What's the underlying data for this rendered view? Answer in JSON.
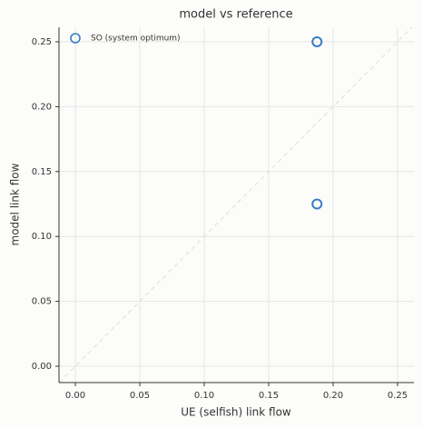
{
  "chart_data": {
    "type": "scatter",
    "title": "model vs reference",
    "x_label": "UE (selfish) link flow",
    "y_label": "model link flow",
    "series": [
      {
        "name": "SO (system optimum)",
        "color": "#3a7bc8",
        "x": [
          0.1875,
          0.1875
        ],
        "values": [
          0.25,
          0.125
        ]
      }
    ],
    "xlim": [
      -0.0127,
      0.2627
    ],
    "ylim": [
      -0.0126,
      0.2612
    ],
    "xticks": [
      {
        "value": 0,
        "label": "0.00"
      },
      0.05,
      {
        "value": 0.1,
        "label": "0.10"
      },
      0.15,
      {
        "value": 0.2,
        "label": "0.20"
      },
      0.25
    ],
    "yticks": [
      {
        "value": 0,
        "label": "0.00"
      },
      0.05,
      {
        "value": 0.1,
        "label": "0.10"
      },
      0.15,
      {
        "value": 0.2,
        "label": "0.20"
      },
      0.25
    ],
    "grid": true,
    "legend": "upper left"
  }
}
